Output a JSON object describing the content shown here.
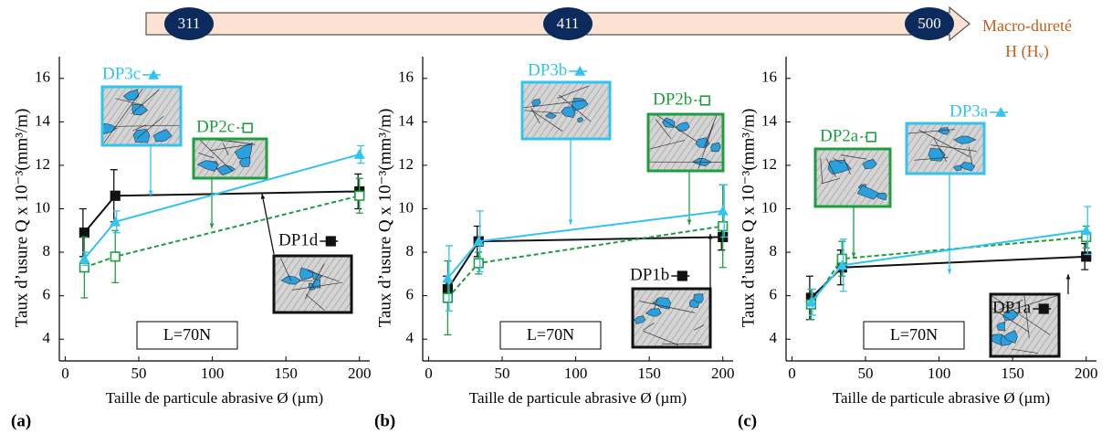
{
  "hardness_scale": {
    "markers": [
      "311",
      "411",
      "500"
    ],
    "label": "Macro-dureté",
    "unit": "H (Hᵥ)"
  },
  "chart_data": [
    {
      "type": "line",
      "panel_label": "(a)",
      "annotation": "L=70N",
      "ylabel": "Taux d’usure Q x 10⁻³(mm³/m)",
      "xlabel": "Taille de particule abrasive Ø (µm)",
      "xlim": [
        -4,
        207
      ],
      "ylim": [
        3,
        17
      ],
      "xticks": [
        0,
        50,
        100,
        150,
        200
      ],
      "yticks": [
        4,
        6,
        8,
        10,
        12,
        14,
        16
      ],
      "x": [
        13,
        34,
        200
      ],
      "series": [
        {
          "name": "DP1d",
          "color": "#111111",
          "marker": "filled-square",
          "dashed": false,
          "values": [
            8.9,
            10.6,
            10.8
          ],
          "errors": [
            1.1,
            1.2,
            0.8
          ]
        },
        {
          "name": "DP2c",
          "color": "#1f9e3f",
          "marker": "open-square",
          "dashed": true,
          "values": [
            7.3,
            7.8,
            10.6
          ],
          "errors": [
            1.4,
            1.2,
            0.8
          ]
        },
        {
          "name": "DP3c",
          "color": "#33c3f0",
          "marker": "triangle",
          "dashed": false,
          "values": [
            7.7,
            9.4,
            12.5
          ],
          "errors": [
            0.3,
            0.5,
            0.4
          ]
        }
      ]
    },
    {
      "type": "line",
      "panel_label": "(b)",
      "annotation": "L=70N",
      "ylabel": "Taux d’usure Q x 10⁻³(mm³/m)",
      "xlabel": "Taille de particule abrasive Ø (µm)",
      "xlim": [
        -4,
        207
      ],
      "ylim": [
        3,
        17
      ],
      "xticks": [
        0,
        50,
        100,
        150,
        200
      ],
      "yticks": [
        4,
        6,
        8,
        10,
        12,
        14,
        16
      ],
      "x": [
        13,
        34,
        200
      ],
      "series": [
        {
          "name": "DP1b",
          "color": "#111111",
          "marker": "filled-square",
          "dashed": false,
          "values": [
            6.3,
            8.5,
            8.7
          ],
          "errors": [
            0.6,
            0.7,
            0.6
          ]
        },
        {
          "name": "DP2b",
          "color": "#1f9e3f",
          "marker": "open-square",
          "dashed": true,
          "values": [
            5.9,
            7.5,
            9.2
          ],
          "errors": [
            1.7,
            0.5,
            1.9
          ]
        },
        {
          "name": "DP3b",
          "color": "#33c3f0",
          "marker": "triangle",
          "dashed": false,
          "values": [
            6.8,
            8.5,
            9.9
          ],
          "errors": [
            1.5,
            1.4,
            1.2
          ]
        }
      ]
    },
    {
      "type": "line",
      "panel_label": "(c)",
      "annotation": "L=70N",
      "ylabel": "Taux d’usure Q x 10⁻³(mm³/m)",
      "xlabel": "Taille de particule abrasive Ø (µm)",
      "xlim": [
        -4,
        207
      ],
      "ylim": [
        3,
        17
      ],
      "xticks": [
        0,
        50,
        100,
        150,
        200
      ],
      "yticks": [
        4,
        6,
        8,
        10,
        12,
        14,
        16
      ],
      "x": [
        13,
        34,
        200
      ],
      "series": [
        {
          "name": "DP1a",
          "color": "#111111",
          "marker": "filled-square",
          "dashed": false,
          "values": [
            5.9,
            7.3,
            7.8
          ],
          "errors": [
            1.0,
            0.8,
            0.6
          ]
        },
        {
          "name": "DP2a",
          "color": "#1f9e3f",
          "marker": "open-square",
          "dashed": true,
          "values": [
            5.6,
            7.7,
            8.7
          ],
          "errors": [
            0.7,
            0.8,
            0.5
          ]
        },
        {
          "name": "DP3a",
          "color": "#33c3f0",
          "marker": "triangle",
          "dashed": false,
          "values": [
            5.7,
            7.4,
            9.0
          ],
          "errors": [
            0.6,
            1.2,
            1.1
          ]
        }
      ]
    }
  ]
}
